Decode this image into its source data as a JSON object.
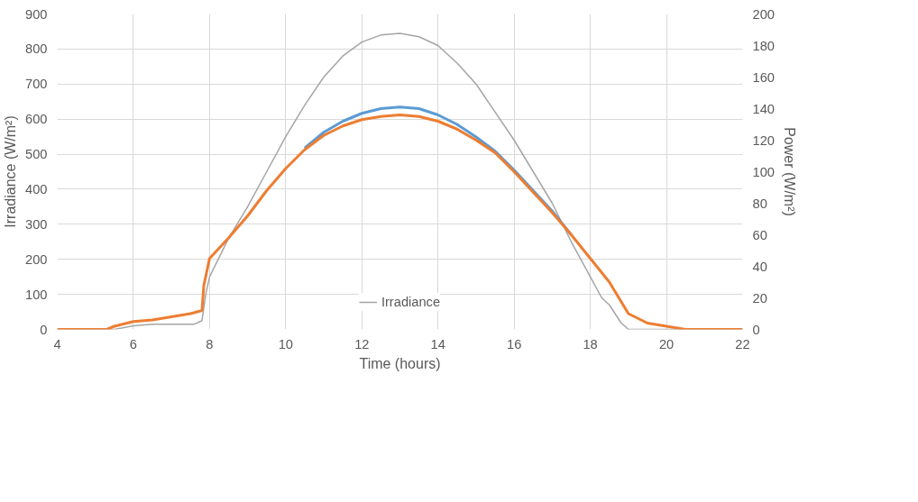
{
  "chart_data": {
    "type": "line",
    "xlabel": "Time (hours)",
    "ylabel": "Irradiance (W/m²)",
    "y2label": "Power (W/m²)",
    "xlim": [
      4,
      22
    ],
    "xticks": [
      4,
      6,
      8,
      10,
      12,
      14,
      16,
      18,
      20,
      22
    ],
    "ylim": [
      0,
      900
    ],
    "yticks": [
      0,
      100,
      200,
      300,
      400,
      500,
      600,
      700,
      800,
      900
    ],
    "y2lim": [
      0,
      200
    ],
    "y2ticks": [
      0,
      20,
      40,
      60,
      80,
      100,
      120,
      140,
      160,
      180,
      200
    ],
    "grid": true,
    "legend": "bottom",
    "marker": "none",
    "line_style": "solid",
    "series": [
      {
        "name": "Irradiance",
        "color": "#a5a5a5",
        "x": [
          4,
          5.5,
          6,
          6.5,
          7,
          7.6,
          7.8,
          7.9,
          8,
          8.5,
          9,
          9.5,
          10,
          10.5,
          11,
          11.5,
          12,
          12.5,
          13,
          13.5,
          14,
          14.5,
          15,
          15.5,
          16,
          16.5,
          17,
          17.5,
          18,
          18.3,
          18.5,
          18.8,
          19,
          22
        ],
        "values": [
          0,
          0,
          10,
          15,
          15,
          15,
          25,
          100,
          150,
          260,
          350,
          450,
          550,
          640,
          720,
          780,
          820,
          840,
          845,
          835,
          810,
          760,
          700,
          620,
          540,
          450,
          360,
          250,
          150,
          90,
          70,
          20,
          0,
          0
        ]
      },
      {
        "color": "#5b9bd5",
        "axis": "y2",
        "x": [
          10.5,
          11,
          11.5,
          12,
          12.5,
          13,
          13.5,
          14,
          14.5,
          15,
          15.5,
          16,
          16.5,
          17,
          17.5
        ],
        "values": [
          115,
          125,
          132,
          137,
          140,
          141,
          140,
          136,
          130,
          122,
          113,
          101,
          88,
          75,
          60
        ]
      },
      {
        "color": "#ed7d31",
        "axis": "y2",
        "x": [
          4,
          5.3,
          5.5,
          6,
          6.5,
          7,
          7.5,
          7.8,
          7.85,
          8,
          8.5,
          9,
          9.5,
          10,
          10.5,
          11,
          11.5,
          12,
          12.5,
          13,
          13.5,
          14,
          14.5,
          15,
          15.5,
          16,
          16.5,
          17,
          17.5,
          18,
          18.5,
          19,
          19.5,
          20,
          20.5,
          22
        ],
        "values": [
          0,
          0,
          2,
          5,
          6,
          8,
          10,
          12,
          28,
          45,
          58,
          72,
          88,
          102,
          114,
          123,
          129,
          133,
          135,
          136,
          135,
          132,
          127,
          120,
          112,
          100,
          87,
          74,
          60,
          45,
          30,
          10,
          4,
          2,
          0,
          0
        ]
      }
    ]
  }
}
